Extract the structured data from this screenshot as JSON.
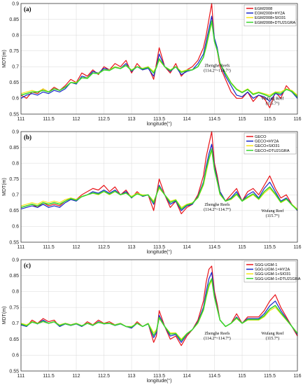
{
  "figure": {
    "x_unit_note": "longitude(°)",
    "y_unit_note": "MDT(m)"
  },
  "colors": {
    "s1": "#e8141a",
    "s2": "#1426c8",
    "s3": "#f5e616",
    "s4": "#3ad62e"
  },
  "chart_data": [
    {
      "type": "line",
      "panel_label": "(a)",
      "xlabel": "longitude(°)",
      "ylabel": "MDT(m)",
      "xlim": [
        111,
        116
      ],
      "ylim": [
        0.55,
        0.9
      ],
      "xticks": [
        "111",
        "111.5",
        "112",
        "112.5",
        "113",
        "113.5",
        "114",
        "114.5",
        "115",
        "115.5",
        "116"
      ],
      "yticks": [
        "0.55",
        "0.6",
        "0.65",
        "0.7",
        "0.75",
        "0.8",
        "0.85",
        "0.9"
      ],
      "grid": true,
      "legend_position": "top-right",
      "annotations": [
        {
          "lines": [
            "Zhenghe Reefs",
            "(114.2°~114.7°)"
          ],
          "x": 114.55,
          "y": 0.7
        },
        {
          "lines": [
            "Wufang Reef",
            "(115.7°)"
          ],
          "x": 115.55,
          "y": 0.595
        }
      ],
      "x": [
        111.0,
        111.1,
        111.2,
        111.3,
        111.4,
        111.5,
        111.6,
        111.7,
        111.8,
        111.9,
        112.0,
        112.1,
        112.2,
        112.3,
        112.4,
        112.5,
        112.6,
        112.7,
        112.8,
        112.9,
        113.0,
        113.1,
        113.2,
        113.3,
        113.4,
        113.45,
        113.5,
        113.6,
        113.7,
        113.8,
        113.9,
        114.0,
        114.1,
        114.2,
        114.3,
        114.35,
        114.4,
        114.45,
        114.5,
        114.55,
        114.6,
        114.7,
        114.8,
        114.9,
        115.0,
        115.1,
        115.2,
        115.3,
        115.4,
        115.5,
        115.6,
        115.7,
        115.8,
        115.9,
        116.0
      ],
      "series": [
        {
          "name": "EGM2008",
          "color": "#e8141a",
          "values": [
            0.61,
            0.6,
            0.62,
            0.615,
            0.63,
            0.62,
            0.635,
            0.625,
            0.64,
            0.66,
            0.65,
            0.68,
            0.67,
            0.69,
            0.675,
            0.7,
            0.69,
            0.71,
            0.7,
            0.72,
            0.68,
            0.71,
            0.69,
            0.7,
            0.66,
            0.71,
            0.76,
            0.7,
            0.68,
            0.71,
            0.67,
            0.69,
            0.7,
            0.72,
            0.76,
            0.8,
            0.85,
            0.9,
            0.78,
            0.75,
            0.7,
            0.66,
            0.62,
            0.6,
            0.6,
            0.62,
            0.59,
            0.61,
            0.6,
            0.57,
            0.62,
            0.6,
            0.64,
            0.62,
            0.61
          ]
        },
        {
          "name": "EGM2008+HY2A",
          "color": "#1426c8",
          "values": [
            0.6,
            0.61,
            0.615,
            0.61,
            0.62,
            0.615,
            0.625,
            0.62,
            0.63,
            0.65,
            0.645,
            0.67,
            0.665,
            0.685,
            0.68,
            0.695,
            0.69,
            0.7,
            0.695,
            0.71,
            0.685,
            0.7,
            0.69,
            0.695,
            0.67,
            0.7,
            0.74,
            0.7,
            0.685,
            0.7,
            0.675,
            0.685,
            0.69,
            0.71,
            0.74,
            0.78,
            0.82,
            0.86,
            0.79,
            0.76,
            0.71,
            0.67,
            0.64,
            0.61,
            0.605,
            0.62,
            0.6,
            0.61,
            0.605,
            0.59,
            0.615,
            0.61,
            0.63,
            0.62,
            0.6
          ]
        },
        {
          "name": "EGM2008+SIO31",
          "color": "#f5e616",
          "values": [
            0.615,
            0.62,
            0.625,
            0.62,
            0.63,
            0.62,
            0.63,
            0.625,
            0.635,
            0.65,
            0.65,
            0.665,
            0.665,
            0.68,
            0.68,
            0.69,
            0.69,
            0.7,
            0.695,
            0.705,
            0.69,
            0.7,
            0.695,
            0.7,
            0.685,
            0.7,
            0.72,
            0.7,
            0.69,
            0.7,
            0.685,
            0.69,
            0.69,
            0.7,
            0.73,
            0.76,
            0.8,
            0.84,
            0.78,
            0.75,
            0.71,
            0.68,
            0.65,
            0.63,
            0.62,
            0.63,
            0.615,
            0.62,
            0.615,
            0.61,
            0.62,
            0.62,
            0.63,
            0.625,
            0.61
          ]
        },
        {
          "name": "EGM2008+DTU21GRA",
          "color": "#3ad62e",
          "values": [
            0.61,
            0.615,
            0.62,
            0.62,
            0.625,
            0.62,
            0.63,
            0.625,
            0.635,
            0.65,
            0.648,
            0.665,
            0.663,
            0.68,
            0.678,
            0.69,
            0.688,
            0.698,
            0.694,
            0.704,
            0.688,
            0.7,
            0.693,
            0.698,
            0.68,
            0.698,
            0.725,
            0.7,
            0.688,
            0.7,
            0.682,
            0.688,
            0.69,
            0.7,
            0.73,
            0.765,
            0.805,
            0.845,
            0.78,
            0.752,
            0.71,
            0.678,
            0.648,
            0.628,
            0.618,
            0.628,
            0.612,
            0.618,
            0.612,
            0.605,
            0.618,
            0.615,
            0.628,
            0.622,
            0.605
          ]
        }
      ]
    },
    {
      "type": "line",
      "panel_label": "(b)",
      "xlabel": "longitude(°)",
      "ylabel": "MDT(m)",
      "xlim": [
        111,
        116
      ],
      "ylim": [
        0.55,
        0.9
      ],
      "xticks": [
        "111",
        "111.5",
        "112",
        "112.5",
        "113",
        "113.5",
        "114",
        "114.5",
        "115",
        "115.5",
        "116"
      ],
      "yticks": [
        "0.55",
        "0.6",
        "0.65",
        "0.7",
        "0.75",
        "0.8",
        "0.85",
        "0.9"
      ],
      "grid": true,
      "legend_position": "top-right",
      "annotations": [
        {
          "lines": [
            "Zhenghe Reefs",
            "(114.2°~114.7°)"
          ],
          "x": 114.55,
          "y": 0.665
        },
        {
          "lines": [
            "Wufang Reef",
            "(115.7°)"
          ],
          "x": 115.55,
          "y": 0.645
        }
      ],
      "x": [
        111.0,
        111.1,
        111.2,
        111.3,
        111.4,
        111.5,
        111.6,
        111.7,
        111.8,
        111.9,
        112.0,
        112.1,
        112.2,
        112.3,
        112.4,
        112.5,
        112.6,
        112.7,
        112.8,
        112.9,
        113.0,
        113.1,
        113.2,
        113.3,
        113.4,
        113.45,
        113.5,
        113.6,
        113.7,
        113.8,
        113.9,
        114.0,
        114.1,
        114.2,
        114.3,
        114.35,
        114.4,
        114.45,
        114.5,
        114.55,
        114.6,
        114.7,
        114.8,
        114.9,
        115.0,
        115.1,
        115.2,
        115.3,
        115.4,
        115.5,
        115.6,
        115.7,
        115.8,
        115.9,
        116.0
      ],
      "series": [
        {
          "name": "GECO",
          "color": "#e8141a",
          "values": [
            0.66,
            0.665,
            0.67,
            0.66,
            0.675,
            0.665,
            0.67,
            0.665,
            0.68,
            0.69,
            0.685,
            0.7,
            0.71,
            0.72,
            0.715,
            0.73,
            0.71,
            0.725,
            0.7,
            0.715,
            0.69,
            0.71,
            0.695,
            0.7,
            0.65,
            0.7,
            0.75,
            0.7,
            0.66,
            0.68,
            0.64,
            0.66,
            0.67,
            0.7,
            0.76,
            0.82,
            0.86,
            0.9,
            0.8,
            0.76,
            0.71,
            0.68,
            0.7,
            0.72,
            0.68,
            0.71,
            0.72,
            0.7,
            0.73,
            0.76,
            0.72,
            0.69,
            0.7,
            0.67,
            0.65
          ]
        },
        {
          "name": "GECO+HY2A",
          "color": "#1426c8",
          "values": [
            0.655,
            0.66,
            0.665,
            0.66,
            0.67,
            0.66,
            0.665,
            0.66,
            0.675,
            0.685,
            0.68,
            0.695,
            0.7,
            0.71,
            0.705,
            0.715,
            0.705,
            0.715,
            0.7,
            0.71,
            0.69,
            0.705,
            0.695,
            0.7,
            0.67,
            0.7,
            0.73,
            0.7,
            0.67,
            0.68,
            0.65,
            0.665,
            0.67,
            0.695,
            0.74,
            0.79,
            0.83,
            0.86,
            0.79,
            0.75,
            0.71,
            0.68,
            0.69,
            0.71,
            0.68,
            0.7,
            0.71,
            0.69,
            0.72,
            0.74,
            0.71,
            0.68,
            0.69,
            0.67,
            0.65
          ]
        },
        {
          "name": "GECO+SIO31",
          "color": "#f5e616",
          "values": [
            0.665,
            0.67,
            0.675,
            0.67,
            0.68,
            0.675,
            0.68,
            0.675,
            0.685,
            0.69,
            0.685,
            0.695,
            0.7,
            0.705,
            0.7,
            0.71,
            0.7,
            0.71,
            0.7,
            0.705,
            0.695,
            0.705,
            0.7,
            0.7,
            0.68,
            0.7,
            0.72,
            0.7,
            0.68,
            0.685,
            0.66,
            0.67,
            0.675,
            0.69,
            0.73,
            0.77,
            0.81,
            0.84,
            0.78,
            0.74,
            0.7,
            0.68,
            0.685,
            0.7,
            0.68,
            0.69,
            0.7,
            0.685,
            0.705,
            0.72,
            0.7,
            0.675,
            0.685,
            0.67,
            0.655
          ]
        },
        {
          "name": "GECO+DTU21GRA",
          "color": "#3ad62e",
          "values": [
            0.66,
            0.665,
            0.67,
            0.665,
            0.675,
            0.67,
            0.675,
            0.67,
            0.68,
            0.688,
            0.683,
            0.694,
            0.7,
            0.706,
            0.702,
            0.711,
            0.702,
            0.711,
            0.7,
            0.706,
            0.692,
            0.703,
            0.697,
            0.7,
            0.675,
            0.7,
            0.725,
            0.7,
            0.676,
            0.683,
            0.655,
            0.668,
            0.673,
            0.692,
            0.735,
            0.78,
            0.815,
            0.845,
            0.78,
            0.743,
            0.703,
            0.68,
            0.687,
            0.703,
            0.68,
            0.693,
            0.703,
            0.687,
            0.71,
            0.725,
            0.703,
            0.677,
            0.687,
            0.668,
            0.652
          ]
        }
      ]
    },
    {
      "type": "line",
      "panel_label": "(c)",
      "xlabel": "longitude(°)",
      "ylabel": "MDT(m)",
      "xlim": [
        111,
        116
      ],
      "ylim": [
        0.55,
        0.9
      ],
      "xticks": [
        "111",
        "111.5",
        "112",
        "112.5",
        "113",
        "113.5",
        "114",
        "114.5",
        "115",
        "115.5",
        "116"
      ],
      "yticks": [
        "0.55",
        "0.6",
        "0.65",
        "0.7",
        "0.75",
        "0.8",
        "0.85",
        "0.9"
      ],
      "grid": true,
      "legend_position": "top-right",
      "annotations": [
        {
          "lines": [
            "Zhenghe Reefs",
            "(114.2°~114.7°)"
          ],
          "x": 114.55,
          "y": 0.665
        },
        {
          "lines": [
            "Wufang Reef",
            "(115.7°)"
          ],
          "x": 115.55,
          "y": 0.665
        }
      ],
      "x": [
        111.0,
        111.1,
        111.2,
        111.3,
        111.4,
        111.5,
        111.6,
        111.7,
        111.8,
        111.9,
        112.0,
        112.1,
        112.2,
        112.3,
        112.4,
        112.5,
        112.6,
        112.7,
        112.8,
        112.9,
        113.0,
        113.1,
        113.2,
        113.3,
        113.4,
        113.45,
        113.5,
        113.6,
        113.7,
        113.8,
        113.9,
        114.0,
        114.1,
        114.2,
        114.3,
        114.35,
        114.4,
        114.45,
        114.5,
        114.55,
        114.6,
        114.7,
        114.8,
        114.9,
        115.0,
        115.1,
        115.2,
        115.3,
        115.4,
        115.5,
        115.6,
        115.7,
        115.8,
        115.9,
        116.0
      ],
      "series": [
        {
          "name": "SGG-UGM-1",
          "color": "#e8141a",
          "values": [
            0.7,
            0.69,
            0.71,
            0.7,
            0.715,
            0.705,
            0.71,
            0.69,
            0.7,
            0.695,
            0.7,
            0.69,
            0.705,
            0.695,
            0.71,
            0.7,
            0.705,
            0.695,
            0.7,
            0.69,
            0.685,
            0.705,
            0.69,
            0.7,
            0.64,
            0.66,
            0.74,
            0.69,
            0.65,
            0.66,
            0.63,
            0.66,
            0.68,
            0.71,
            0.77,
            0.83,
            0.87,
            0.88,
            0.8,
            0.76,
            0.71,
            0.69,
            0.7,
            0.73,
            0.7,
            0.72,
            0.72,
            0.72,
            0.74,
            0.77,
            0.79,
            0.75,
            0.72,
            0.69,
            0.66
          ]
        },
        {
          "name": "SGG-UGM-1+HY2A",
          "color": "#1426c8",
          "values": [
            0.695,
            0.69,
            0.705,
            0.698,
            0.71,
            0.7,
            0.705,
            0.69,
            0.698,
            0.693,
            0.698,
            0.69,
            0.7,
            0.693,
            0.705,
            0.698,
            0.7,
            0.693,
            0.698,
            0.69,
            0.685,
            0.7,
            0.69,
            0.698,
            0.655,
            0.67,
            0.725,
            0.69,
            0.66,
            0.665,
            0.64,
            0.665,
            0.68,
            0.705,
            0.75,
            0.8,
            0.84,
            0.86,
            0.79,
            0.75,
            0.71,
            0.69,
            0.7,
            0.72,
            0.7,
            0.715,
            0.715,
            0.715,
            0.73,
            0.755,
            0.77,
            0.74,
            0.715,
            0.69,
            0.665
          ]
        },
        {
          "name": "SGG-UGM-1+SIO31",
          "color": "#f5e616",
          "values": [
            0.7,
            0.695,
            0.705,
            0.7,
            0.705,
            0.7,
            0.705,
            0.695,
            0.7,
            0.695,
            0.7,
            0.693,
            0.7,
            0.695,
            0.703,
            0.7,
            0.7,
            0.695,
            0.7,
            0.69,
            0.69,
            0.7,
            0.69,
            0.7,
            0.67,
            0.68,
            0.715,
            0.69,
            0.67,
            0.67,
            0.65,
            0.668,
            0.68,
            0.7,
            0.74,
            0.78,
            0.815,
            0.835,
            0.78,
            0.745,
            0.71,
            0.69,
            0.7,
            0.715,
            0.7,
            0.71,
            0.71,
            0.71,
            0.72,
            0.74,
            0.75,
            0.73,
            0.71,
            0.69,
            0.67
          ]
        },
        {
          "name": "SGG-UGM-1+DTU21GRA",
          "color": "#3ad62e",
          "values": [
            0.698,
            0.692,
            0.704,
            0.699,
            0.706,
            0.7,
            0.705,
            0.693,
            0.699,
            0.694,
            0.699,
            0.692,
            0.7,
            0.694,
            0.703,
            0.699,
            0.7,
            0.694,
            0.699,
            0.69,
            0.688,
            0.7,
            0.69,
            0.699,
            0.662,
            0.676,
            0.718,
            0.69,
            0.666,
            0.668,
            0.646,
            0.667,
            0.68,
            0.702,
            0.743,
            0.785,
            0.822,
            0.84,
            0.782,
            0.746,
            0.71,
            0.69,
            0.7,
            0.717,
            0.7,
            0.712,
            0.712,
            0.712,
            0.724,
            0.745,
            0.756,
            0.733,
            0.712,
            0.69,
            0.668
          ]
        }
      ]
    }
  ]
}
